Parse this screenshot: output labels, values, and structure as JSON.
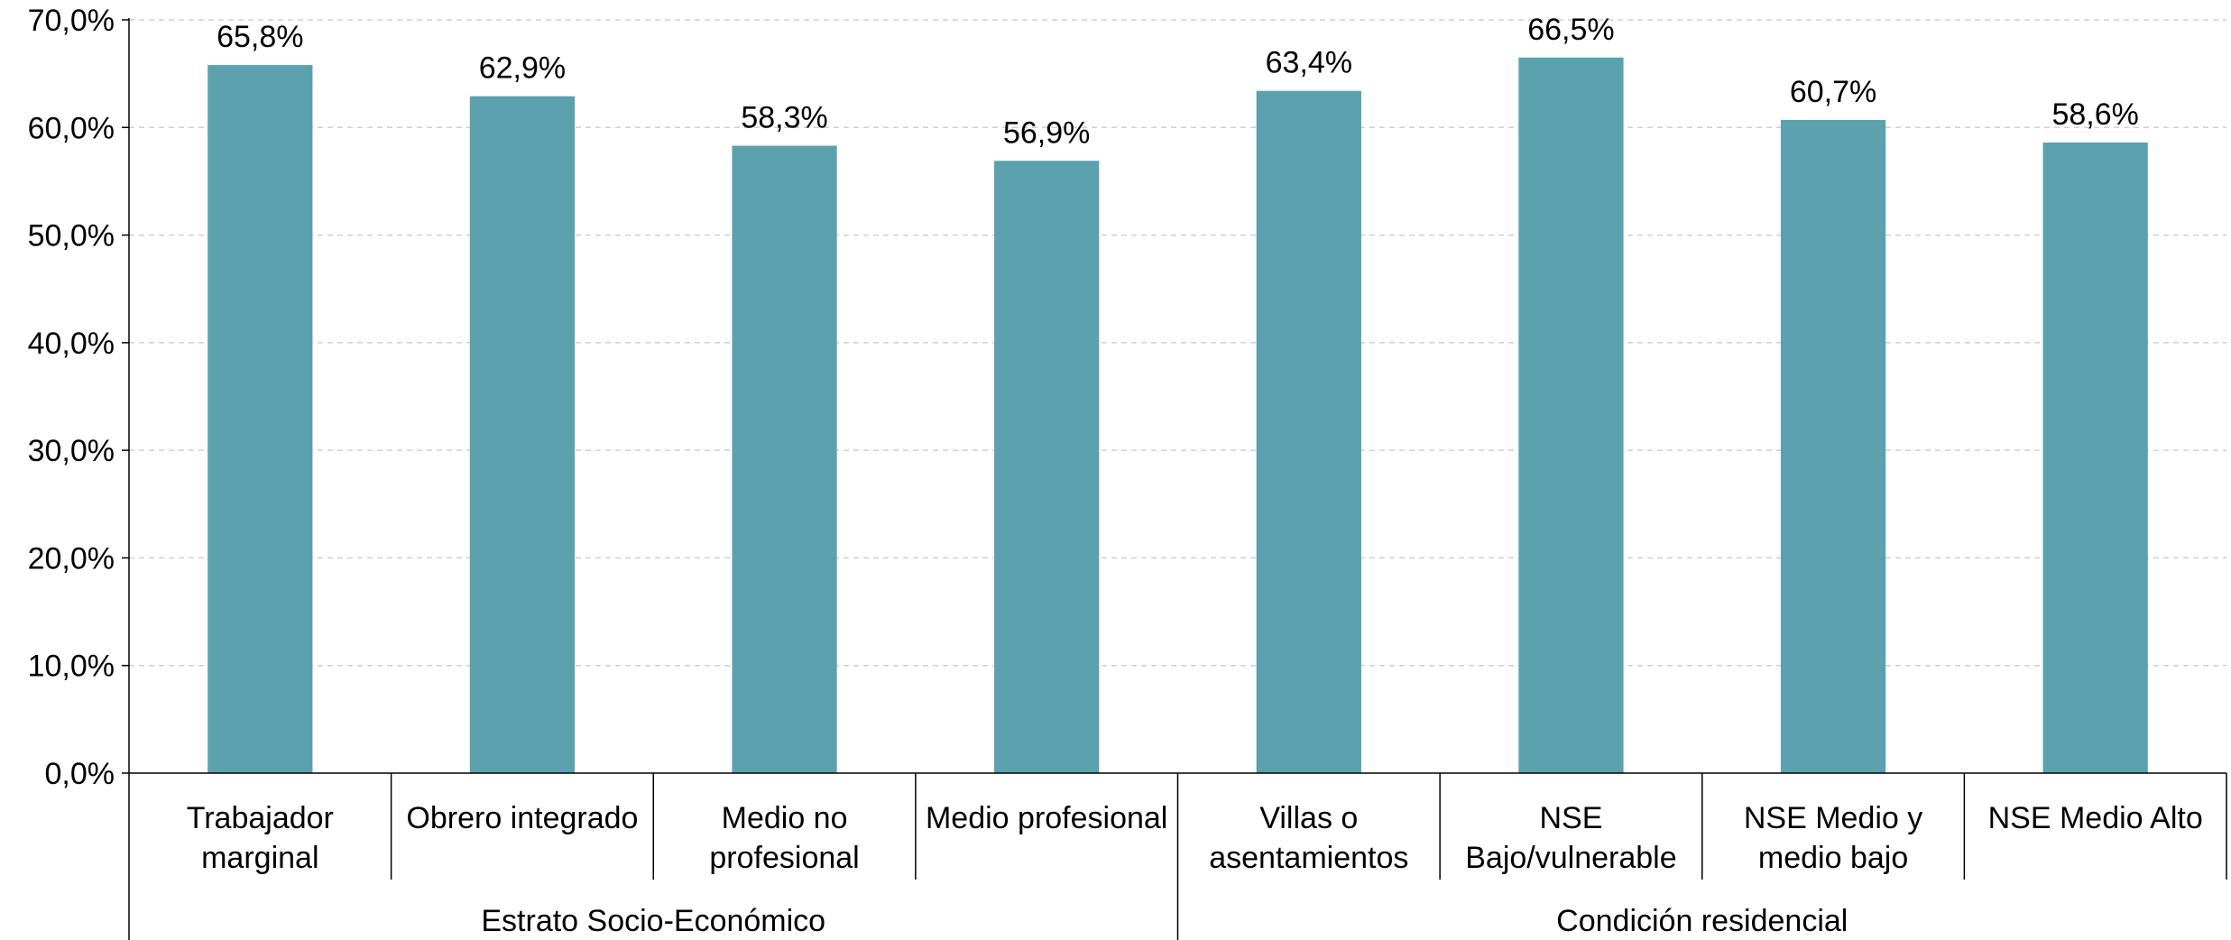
{
  "chart_data": {
    "type": "bar",
    "categories": [
      [
        "Trabajador",
        "marginal"
      ],
      [
        "Obrero integrado"
      ],
      [
        "Medio no",
        "profesional"
      ],
      [
        "Medio profesional"
      ],
      [
        "Villas o",
        "asentamientos"
      ],
      [
        "NSE",
        "Bajo/vulnerable"
      ],
      [
        "NSE Medio y",
        "medio bajo"
      ],
      [
        "NSE Medio Alto"
      ]
    ],
    "values": [
      65.8,
      62.9,
      58.3,
      56.9,
      63.4,
      66.5,
      60.7,
      58.6
    ],
    "data_labels": [
      "65,8%",
      "62,9%",
      "58,3%",
      "56,9%",
      "63,4%",
      "66,5%",
      "60,7%",
      "58,6%"
    ],
    "groups": [
      {
        "label": "Estrato Socio-Económico",
        "start": 0,
        "count": 4
      },
      {
        "label": "Condición residencial",
        "start": 4,
        "count": 4
      }
    ],
    "ylim": [
      0,
      70
    ],
    "yticks": [
      0,
      10,
      20,
      30,
      40,
      50,
      60,
      70
    ],
    "ytick_labels": [
      "0,0%",
      "10,0%",
      "20,0%",
      "30,0%",
      "40,0%",
      "50,0%",
      "60,0%",
      "70,0%"
    ],
    "grid": true,
    "bar_color": "#5ba2ae",
    "title": "",
    "xlabel": "",
    "ylabel": ""
  }
}
